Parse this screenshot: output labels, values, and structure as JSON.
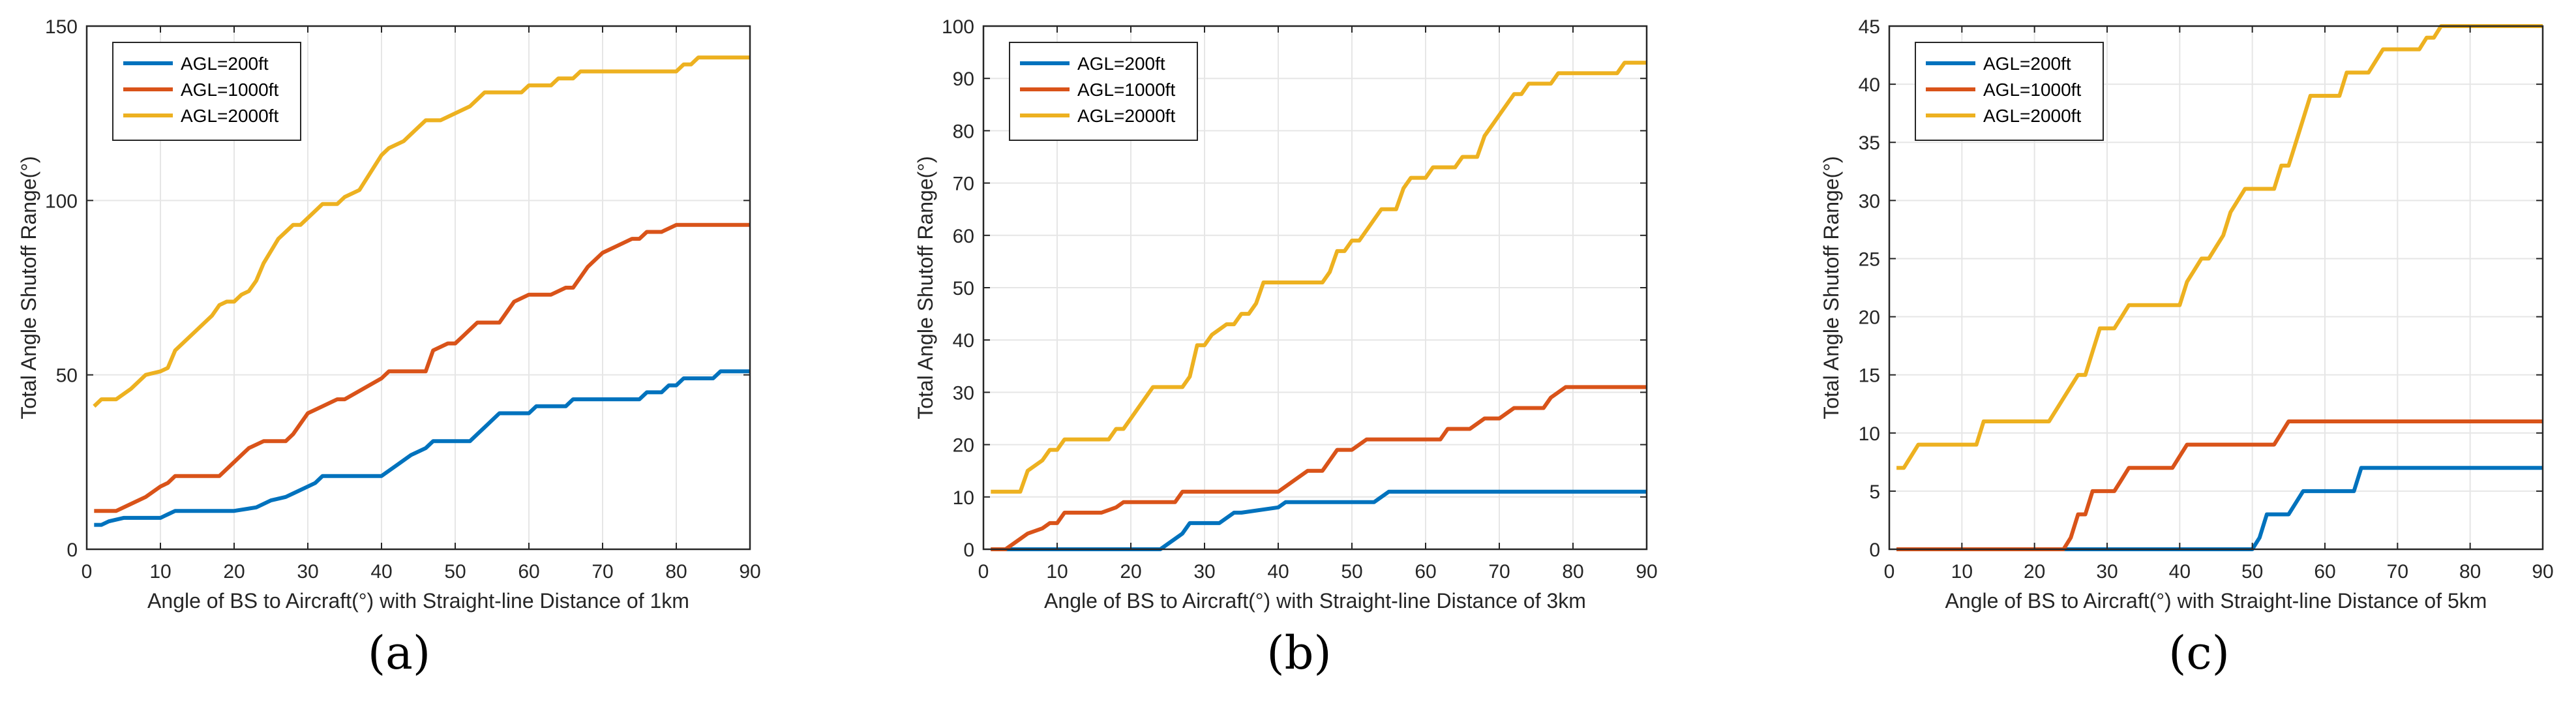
{
  "figure": {
    "captions": [
      "(a)",
      "(b)",
      "(c)"
    ]
  },
  "chart_data": [
    {
      "type": "line",
      "panel": "a",
      "xlabel": "Angle of BS to Aircraft(°) with Straight-line Distance of 1km",
      "ylabel": "Total Angle Shutoff Range(°)",
      "xlim": [
        0,
        90
      ],
      "ylim": [
        0,
        150
      ],
      "xticks": [
        0,
        10,
        20,
        30,
        40,
        50,
        60,
        70,
        80,
        90
      ],
      "yticks": [
        0,
        50,
        100,
        150
      ],
      "grid": true,
      "legend_position": "top-left",
      "series": [
        {
          "name": "AGL=200ft",
          "color": "#0072BD",
          "x": [
            1,
            2,
            3,
            5,
            10,
            11,
            12,
            20,
            23,
            25,
            27,
            28,
            30,
            31,
            32,
            40,
            42,
            44,
            46,
            47,
            52,
            53,
            54,
            56,
            60,
            61,
            65,
            66,
            75,
            76,
            78,
            79,
            80,
            81,
            85,
            86,
            90
          ],
          "y": [
            7,
            7,
            8,
            9,
            9,
            10,
            11,
            11,
            12,
            14,
            15,
            16,
            18,
            19,
            21,
            21,
            24,
            27,
            29,
            31,
            31,
            33,
            35,
            39,
            39,
            41,
            41,
            43,
            43,
            45,
            45,
            47,
            47,
            49,
            49,
            51,
            51
          ]
        },
        {
          "name": "AGL=1000ft",
          "color": "#D95319",
          "x": [
            1,
            4,
            6,
            8,
            10,
            11,
            12,
            18,
            20,
            21,
            22,
            24,
            27,
            28,
            29,
            30,
            32,
            34,
            35,
            40,
            41,
            46,
            47,
            49,
            50,
            51,
            52,
            53,
            56,
            58,
            60,
            63,
            65,
            66,
            68,
            70,
            72,
            74,
            75,
            76,
            78,
            80,
            90
          ],
          "y": [
            11,
            11,
            13,
            15,
            18,
            19,
            21,
            21,
            25,
            27,
            29,
            31,
            31,
            33,
            36,
            39,
            41,
            43,
            43,
            49,
            51,
            51,
            57,
            59,
            59,
            61,
            63,
            65,
            65,
            71,
            73,
            73,
            75,
            75,
            81,
            85,
            87,
            89,
            89,
            91,
            91,
            93,
            93
          ]
        },
        {
          "name": "AGL=2000ft",
          "color": "#EDB120",
          "x": [
            1,
            2,
            4,
            6,
            8,
            10,
            11,
            12,
            16,
            17,
            18,
            19,
            20,
            21,
            22,
            23,
            24,
            26,
            27,
            28,
            29,
            31,
            32,
            34,
            35,
            37,
            40,
            41,
            43,
            44,
            46,
            48,
            52,
            53,
            54,
            55,
            59,
            60,
            63,
            64,
            66,
            67,
            68,
            76,
            78,
            80,
            81,
            82,
            83,
            90
          ],
          "y": [
            41,
            43,
            43,
            46,
            50,
            51,
            52,
            57,
            65,
            67,
            70,
            71,
            71,
            73,
            74,
            77,
            82,
            89,
            91,
            93,
            93,
            97,
            99,
            99,
            101,
            103,
            113,
            115,
            117,
            119,
            123,
            123,
            127,
            129,
            131,
            131,
            131,
            133,
            133,
            135,
            135,
            137,
            137,
            137,
            137,
            137,
            139,
            139,
            141,
            141
          ]
        }
      ]
    },
    {
      "type": "line",
      "panel": "b",
      "xlabel": "Angle of BS to Aircraft(°) with Straight-line Distance of 3km",
      "ylabel": "Total Angle Shutoff Range(°)",
      "xlim": [
        0,
        90
      ],
      "ylim": [
        0,
        100
      ],
      "xticks": [
        0,
        10,
        20,
        30,
        40,
        50,
        60,
        70,
        80,
        90
      ],
      "yticks": [
        0,
        10,
        20,
        30,
        40,
        50,
        60,
        70,
        80,
        90,
        100
      ],
      "grid": true,
      "legend_position": "top-left",
      "series": [
        {
          "name": "AGL=200ft",
          "color": "#0072BD",
          "x": [
            1,
            24,
            26,
            27,
            28,
            29,
            32,
            33,
            34,
            35,
            40,
            41,
            42,
            53,
            54,
            55,
            90
          ],
          "y": [
            0,
            0,
            2,
            3,
            5,
            5,
            5,
            6,
            7,
            7,
            8,
            9,
            9,
            9,
            10,
            11,
            11
          ]
        },
        {
          "name": "AGL=1000ft",
          "color": "#D95319",
          "x": [
            1,
            3,
            5,
            6,
            8,
            9,
            10,
            11,
            12,
            16,
            18,
            19,
            20,
            26,
            27,
            28,
            40,
            42,
            43,
            44,
            46,
            47,
            48,
            50,
            51,
            52,
            54,
            62,
            63,
            66,
            67,
            68,
            70,
            71,
            72,
            76,
            77,
            78,
            79,
            90
          ],
          "y": [
            0,
            0,
            2,
            3,
            4,
            5,
            5,
            7,
            7,
            7,
            8,
            9,
            9,
            9,
            11,
            11,
            11,
            13,
            14,
            15,
            15,
            17,
            19,
            19,
            20,
            21,
            21,
            21,
            23,
            23,
            24,
            25,
            25,
            26,
            27,
            27,
            29,
            30,
            31,
            31
          ]
        },
        {
          "name": "AGL=2000ft",
          "color": "#EDB120",
          "x": [
            1,
            3,
            5,
            6,
            8,
            9,
            10,
            11,
            12,
            17,
            18,
            19,
            20,
            22,
            23,
            24,
            25,
            27,
            28,
            29,
            30,
            31,
            33,
            34,
            35,
            36,
            37,
            38,
            40,
            41,
            42,
            44,
            46,
            47,
            48,
            49,
            50,
            51,
            52,
            53,
            54,
            55,
            56,
            57,
            58,
            60,
            61,
            63,
            64,
            65,
            66,
            67,
            68,
            69,
            70,
            71,
            72,
            73,
            74,
            76,
            77,
            78,
            85,
            86,
            87,
            90
          ],
          "y": [
            11,
            11,
            11,
            15,
            17,
            19,
            19,
            21,
            21,
            21,
            23,
            23,
            25,
            29,
            31,
            31,
            31,
            31,
            33,
            39,
            39,
            41,
            43,
            43,
            45,
            45,
            47,
            51,
            51,
            51,
            51,
            51,
            51,
            53,
            57,
            57,
            59,
            59,
            61,
            63,
            65,
            65,
            65,
            69,
            71,
            71,
            73,
            73,
            73,
            75,
            75,
            75,
            79,
            81,
            83,
            85,
            87,
            87,
            89,
            89,
            89,
            91,
            91,
            91,
            93,
            93
          ]
        }
      ]
    },
    {
      "type": "line",
      "panel": "c",
      "xlabel": "Angle of BS to Aircraft(°) with Straight-line Distance of 5km",
      "ylabel": "Total Angle Shutoff Range(°)",
      "xlim": [
        0,
        90
      ],
      "ylim": [
        0,
        45
      ],
      "xticks": [
        0,
        10,
        20,
        30,
        40,
        50,
        60,
        70,
        80,
        90
      ],
      "yticks": [
        0,
        5,
        10,
        15,
        20,
        25,
        30,
        35,
        40,
        45
      ],
      "grid": true,
      "legend_position": "top-left",
      "series": [
        {
          "name": "AGL=200ft",
          "color": "#0072BD",
          "x": [
            1,
            50,
            51,
            52,
            53,
            55,
            56,
            57,
            64,
            65,
            90
          ],
          "y": [
            0,
            0,
            1,
            3,
            3,
            3,
            4,
            5,
            5,
            7,
            7
          ]
        },
        {
          "name": "AGL=1000ft",
          "color": "#D95319",
          "x": [
            1,
            24,
            25,
            26,
            27,
            28,
            29,
            31,
            32,
            33,
            39,
            40,
            41,
            53,
            54,
            55,
            90
          ],
          "y": [
            0,
            0,
            1,
            3,
            3,
            5,
            5,
            5,
            6,
            7,
            7,
            8,
            9,
            9,
            10,
            11,
            11
          ]
        },
        {
          "name": "AGL=2000ft",
          "color": "#EDB120",
          "x": [
            1,
            2,
            3,
            4,
            12,
            13,
            22,
            23,
            24,
            26,
            27,
            28,
            29,
            31,
            32,
            33,
            40,
            41,
            42,
            43,
            44,
            45,
            46,
            47,
            48,
            49,
            53,
            54,
            55,
            56,
            57,
            58,
            60,
            61,
            62,
            63,
            64,
            66,
            67,
            68,
            72,
            73,
            74,
            75,
            76,
            77,
            78,
            90
          ],
          "y": [
            7,
            7,
            8,
            9,
            9,
            11,
            11,
            12,
            13,
            15,
            15,
            17,
            19,
            19,
            20,
            21,
            21,
            23,
            24,
            25,
            25,
            26,
            27,
            29,
            30,
            31,
            31,
            33,
            33,
            35,
            37,
            39,
            39,
            39,
            39,
            41,
            41,
            41,
            42,
            43,
            43,
            43,
            44,
            44,
            45,
            45,
            45,
            45
          ]
        }
      ]
    }
  ]
}
